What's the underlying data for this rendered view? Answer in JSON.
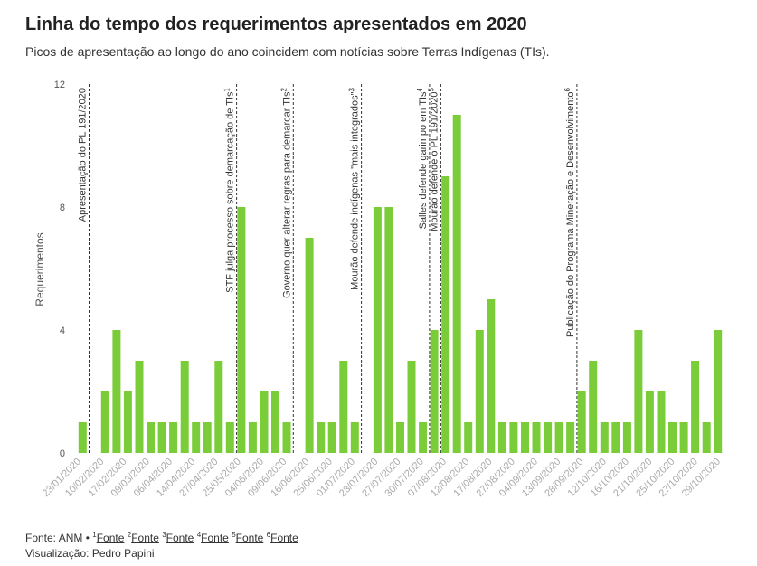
{
  "title": "Linha do tempo dos requerimentos apresentados em 2020",
  "subtitle": "Picos de apresentação ao longo do ano coincidem com notícias sobre Terras Indígenas (TIs).",
  "colors": {
    "bar": "#7acc38",
    "axis_text": "#555555",
    "tick_label": "#aaaaaa",
    "annotation": "#333333"
  },
  "chart_data": {
    "type": "bar",
    "ylabel": "Requerimentos",
    "ylim": [
      0,
      12
    ],
    "yticks": [
      0,
      4,
      8,
      12
    ],
    "xtick_labels": [
      "23/01/2020",
      "10/02/2020",
      "17/02/2020",
      "09/03/2020",
      "06/04/2020",
      "14/04/2020",
      "27/04/2020",
      "25/05/2020",
      "04/06/2020",
      "09/06/2020",
      "16/06/2020",
      "25/06/2020",
      "01/07/2020",
      "23/07/2020",
      "27/07/2020",
      "30/07/2020",
      "07/08/2020",
      "12/08/2020",
      "17/08/2020",
      "27/08/2020",
      "04/09/2020",
      "13/09/2020",
      "28/09/2020",
      "12/10/2020",
      "16/10/2020",
      "21/10/2020",
      "25/10/2020",
      "27/10/2020",
      "29/10/2020"
    ],
    "values": [
      1,
      0,
      2,
      4,
      2,
      3,
      1,
      1,
      1,
      3,
      1,
      1,
      3,
      1,
      8,
      1,
      2,
      2,
      1,
      0,
      7,
      1,
      1,
      3,
      1,
      0,
      8,
      8,
      1,
      3,
      1,
      4,
      9,
      11,
      1,
      4,
      5,
      1,
      1,
      1,
      1,
      1,
      1,
      1,
      2,
      3,
      1,
      1,
      1,
      4,
      2,
      2,
      1,
      1,
      3,
      1,
      4
    ],
    "annotations": [
      {
        "index": 1,
        "label": "Apresentação do PL 191/2020"
      },
      {
        "index": 14,
        "label": "STF julga processo sobre demarcação de TIs",
        "sup": "1"
      },
      {
        "index": 19,
        "label": "Governo quer alterar regras para demarcar TIs",
        "sup": "2"
      },
      {
        "index": 25,
        "label": "Mourão defende indígenas \"mais integrados\"",
        "sup": "3"
      },
      {
        "index": 31,
        "label": "Salles defende garimpo em TIs",
        "sup": "4"
      },
      {
        "index": 32,
        "label": "Mourão defende o PL 191/2020",
        "sup": "5"
      },
      {
        "index": 44,
        "label": "Publicação do Programa Mineração e Desenvolvimento",
        "sup": "6"
      }
    ]
  },
  "footer": {
    "source_prefix": "Fonte: ANM •",
    "links": [
      {
        "sup": "1",
        "text": "Fonte"
      },
      {
        "sup": "2",
        "text": "Fonte"
      },
      {
        "sup": "3",
        "text": "Fonte"
      },
      {
        "sup": "4",
        "text": "Fonte"
      },
      {
        "sup": "5",
        "text": "Fonte"
      },
      {
        "sup": "6",
        "text": "Fonte"
      }
    ],
    "visualization": "Visualização: Pedro Papini"
  }
}
